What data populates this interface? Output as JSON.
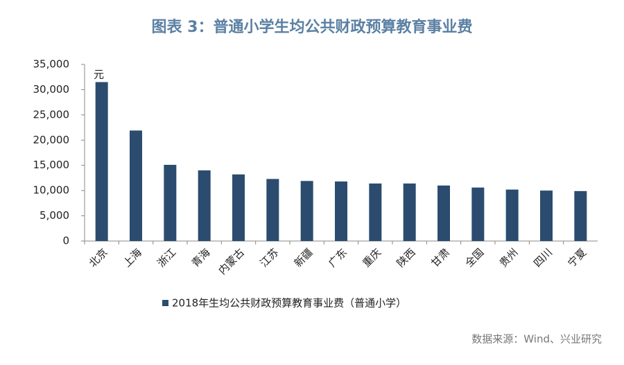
{
  "chart_data": {
    "type": "bar",
    "title": "图表 3：普通小学生均公共财政预算教育事业费",
    "y_unit": "元",
    "categories": [
      "北京",
      "上海",
      "浙江",
      "青海",
      "内蒙古",
      "江苏",
      "新疆",
      "广东",
      "重庆",
      "陕西",
      "甘肃",
      "全国",
      "贵州",
      "四川",
      "宁夏"
    ],
    "series": [
      {
        "name": "2018年生均公共财政预算教育事业费（普通小学）",
        "color": "#2b4c6f",
        "values": [
          31500,
          21900,
          15100,
          14000,
          13200,
          12300,
          11900,
          11800,
          11400,
          11400,
          11000,
          10600,
          10200,
          10000,
          9900
        ]
      }
    ],
    "ylim": [
      0,
      35000
    ],
    "yticks": [
      0,
      {
        "value": 5000,
        "label": "5,000"
      },
      {
        "value": 10000,
        "label": "10,000"
      },
      {
        "value": 15000,
        "label": "15,000"
      },
      {
        "value": 20000,
        "label": "20,000"
      },
      {
        "value": 25000,
        "label": "25,000"
      },
      {
        "value": 30000,
        "label": "30,000"
      },
      {
        "value": 35000,
        "label": "35,000"
      }
    ],
    "source": "数据来源：Wind、兴业研究"
  }
}
